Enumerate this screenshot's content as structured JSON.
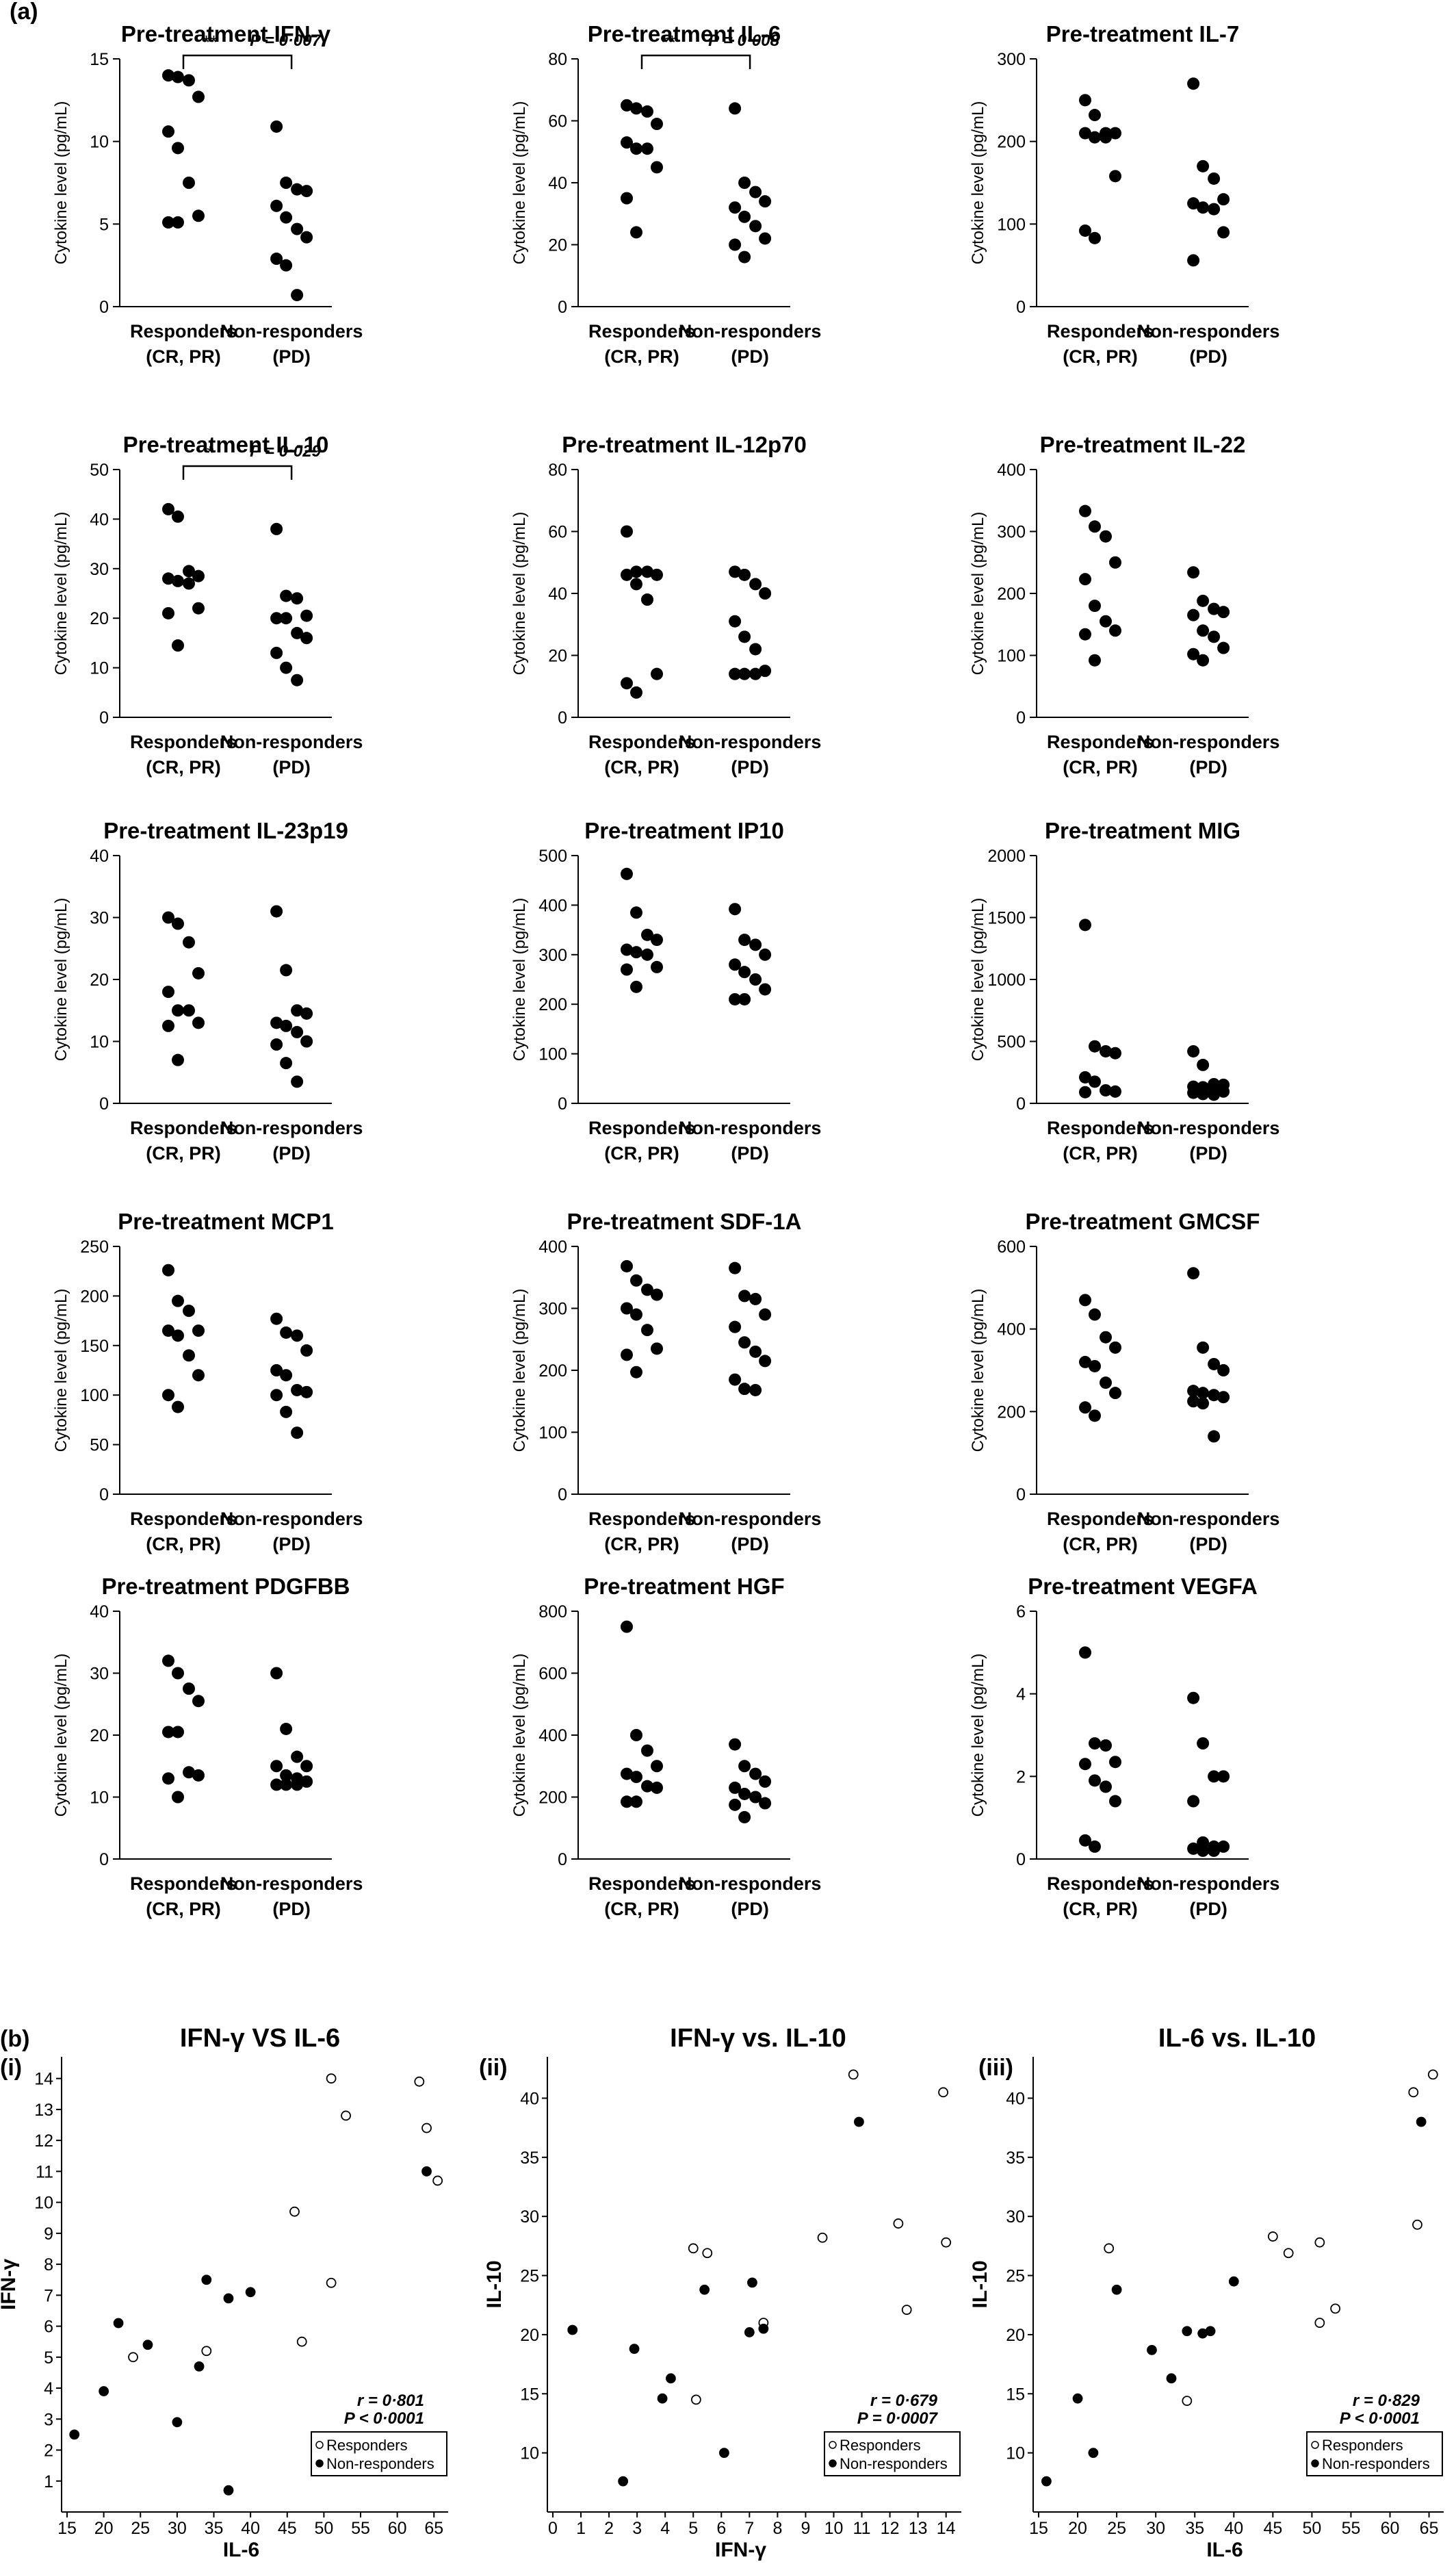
{
  "panel_a_label": "(a)",
  "panel_b_label": "(b)",
  "chart_data": [
    {
      "type": "scatter",
      "title": "Pre-treatment IFN-γ",
      "ylabel": "Cytokine level (pg/mL)",
      "ylim": [
        0,
        15
      ],
      "yticks": [
        0,
        5,
        10,
        15
      ],
      "categories": [
        "Responders\n(CR, PR)",
        "Non-responders\n(PD)"
      ],
      "series": [
        {
          "values": [
            14.0,
            13.9,
            12.7,
            13.7,
            10.6,
            9.6,
            7.5,
            5.5,
            5.1,
            5.1
          ]
        },
        {
          "values": [
            10.9,
            7.5,
            7.1,
            7.0,
            6.1,
            5.4,
            4.7,
            4.2,
            2.9,
            2.5,
            0.7
          ]
        }
      ],
      "annotation": {
        "stars": "**",
        "p": "P = 0·007"
      }
    },
    {
      "type": "scatter",
      "title": "Pre-treatment IL-6",
      "ylabel": "Cytokine level (pg/mL)",
      "ylim": [
        0,
        80
      ],
      "yticks": [
        0,
        20,
        40,
        60,
        80
      ],
      "categories": [
        "Responders\n(CR, PR)",
        "Non-responders\n(PD)"
      ],
      "series": [
        {
          "values": [
            65,
            63,
            64,
            59,
            53,
            51,
            51,
            45,
            35,
            24
          ]
        },
        {
          "values": [
            64,
            40,
            37,
            34,
            32,
            29,
            26,
            22,
            20,
            16
          ]
        }
      ],
      "annotation": {
        "stars": "**",
        "p": "P = 0·008"
      }
    },
    {
      "type": "scatter",
      "title": "Pre-treatment IL-7",
      "ylabel": "Cytokine level (pg/mL)",
      "ylim": [
        0,
        300
      ],
      "yticks": [
        0,
        100,
        200,
        300
      ],
      "categories": [
        "Responders\n(CR, PR)",
        "Non-responders\n(PD)"
      ],
      "series": [
        {
          "values": [
            250,
            232,
            210,
            210,
            205,
            205,
            210,
            158,
            92,
            83
          ]
        },
        {
          "values": [
            270,
            170,
            155,
            130,
            125,
            120,
            118,
            90,
            56
          ]
        }
      ]
    },
    {
      "type": "scatter",
      "title": "Pre-treatment IL-10",
      "ylabel": "Cytokine level (pg/mL)",
      "ylim": [
        0,
        50
      ],
      "yticks": [
        0,
        10,
        20,
        30,
        40,
        50
      ],
      "categories": [
        "Responders\n(CR, PR)",
        "Non-responders\n(PD)"
      ],
      "series": [
        {
          "values": [
            42,
            40.5,
            29.5,
            28,
            27.5,
            27,
            28.5,
            22,
            21,
            14.5
          ]
        },
        {
          "values": [
            38,
            24.5,
            24,
            20.5,
            20,
            20,
            17,
            16,
            13,
            10,
            7.5
          ]
        }
      ],
      "annotation": {
        "stars": "*",
        "p": "P = 0·029"
      }
    },
    {
      "type": "scatter",
      "title": "Pre-treatment IL-12p70",
      "ylabel": "Cytokine level (pg/mL)",
      "ylim": [
        0,
        80
      ],
      "yticks": [
        0,
        20,
        40,
        60,
        80
      ],
      "categories": [
        "Responders\n(CR, PR)",
        "Non-responders\n(PD)"
      ],
      "series": [
        {
          "values": [
            60,
            47,
            47,
            46,
            46,
            43,
            38,
            14,
            11,
            8
          ]
        },
        {
          "values": [
            47,
            46,
            43,
            40,
            31,
            26,
            22,
            15,
            14,
            14,
            14
          ]
        }
      ]
    },
    {
      "type": "scatter",
      "title": "Pre-treatment IL-22",
      "ylabel": "Cytokine level (pg/mL)",
      "ylim": [
        0,
        400
      ],
      "yticks": [
        0,
        100,
        200,
        300,
        400
      ],
      "categories": [
        "Responders\n(CR, PR)",
        "Non-responders\n(PD)"
      ],
      "series": [
        {
          "values": [
            333,
            308,
            292,
            250,
            223,
            180,
            155,
            140,
            134,
            92
          ]
        },
        {
          "values": [
            234,
            188,
            175,
            170,
            165,
            140,
            130,
            112,
            102,
            92
          ]
        }
      ]
    },
    {
      "type": "scatter",
      "title": "Pre-treatment IL-23p19",
      "ylabel": "Cytokine level (pg/mL)",
      "ylim": [
        0,
        40
      ],
      "yticks": [
        0,
        10,
        20,
        30,
        40
      ],
      "categories": [
        "Responders\n(CR, PR)",
        "Non-responders\n(PD)"
      ],
      "series": [
        {
          "values": [
            30,
            29,
            26,
            21,
            18,
            15,
            15,
            13,
            12.5,
            7
          ]
        },
        {
          "values": [
            31,
            21.5,
            15,
            14.5,
            13,
            12.5,
            11.5,
            10,
            9.5,
            6.5,
            3.5
          ]
        }
      ]
    },
    {
      "type": "scatter",
      "title": "Pre-treatment IP10",
      "ylabel": "Cytokine level (pg/mL)",
      "ylim": [
        0,
        500
      ],
      "yticks": [
        0,
        100,
        200,
        300,
        400,
        500
      ],
      "categories": [
        "Responders\n(CR, PR)",
        "Non-responders\n(PD)"
      ],
      "series": [
        {
          "values": [
            463,
            385,
            340,
            330,
            310,
            305,
            300,
            275,
            270,
            235
          ]
        },
        {
          "values": [
            392,
            330,
            320,
            300,
            280,
            265,
            250,
            230,
            210,
            210
          ]
        }
      ]
    },
    {
      "type": "scatter",
      "title": "Pre-treatment MIG",
      "ylabel": "Cytokine level (pg/mL)",
      "ylim": [
        0,
        2000
      ],
      "yticks": [
        0,
        500,
        1000,
        1500,
        2000
      ],
      "categories": [
        "Responders\n(CR, PR)",
        "Non-responders\n(PD)"
      ],
      "series": [
        {
          "values": [
            1440,
            460,
            420,
            405,
            210,
            175,
            105,
            95,
            90
          ]
        },
        {
          "values": [
            420,
            310,
            155,
            150,
            135,
            130,
            120,
            95,
            85,
            75,
            70
          ]
        }
      ]
    },
    {
      "type": "scatter",
      "title": "Pre-treatment MCP1",
      "ylabel": "Cytokine level (pg/mL)",
      "ylim": [
        0,
        250
      ],
      "yticks": [
        0,
        50,
        100,
        150,
        200,
        250
      ],
      "categories": [
        "Responders\n(CR, PR)",
        "Non-responders\n(PD)"
      ],
      "series": [
        {
          "values": [
            226,
            195,
            185,
            165,
            165,
            160,
            140,
            120,
            100,
            88
          ]
        },
        {
          "values": [
            177,
            163,
            160,
            145,
            125,
            120,
            105,
            103,
            100,
            83,
            62
          ]
        }
      ]
    },
    {
      "type": "scatter",
      "title": "Pre-treatment SDF-1A",
      "ylabel": "Cytokine level (pg/mL)",
      "ylim": [
        0,
        400
      ],
      "yticks": [
        0,
        100,
        200,
        300,
        400
      ],
      "categories": [
        "Responders\n(CR, PR)",
        "Non-responders\n(PD)"
      ],
      "series": [
        {
          "values": [
            368,
            345,
            330,
            322,
            300,
            290,
            265,
            235,
            225,
            197
          ]
        },
        {
          "values": [
            365,
            320,
            315,
            290,
            270,
            245,
            230,
            215,
            185,
            170,
            168
          ]
        }
      ]
    },
    {
      "type": "scatter",
      "title": "Pre-treatment GMCSF",
      "ylabel": "Cytokine level (pg/mL)",
      "ylim": [
        0,
        600
      ],
      "yticks": [
        0,
        200,
        400,
        600
      ],
      "categories": [
        "Responders\n(CR, PR)",
        "Non-responders\n(PD)"
      ],
      "series": [
        {
          "values": [
            470,
            435,
            380,
            355,
            320,
            310,
            270,
            245,
            210,
            190
          ]
        },
        {
          "values": [
            535,
            355,
            315,
            300,
            250,
            245,
            240,
            235,
            225,
            220,
            140
          ]
        }
      ]
    },
    {
      "type": "scatter",
      "title": "Pre-treatment PDGFBB",
      "ylabel": "Cytokine level (pg/mL)",
      "ylim": [
        0,
        40
      ],
      "yticks": [
        0,
        10,
        20,
        30,
        40
      ],
      "categories": [
        "Responders\n(CR, PR)",
        "Non-responders\n(PD)"
      ],
      "series": [
        {
          "values": [
            32,
            30,
            27.5,
            25.5,
            20.5,
            20.5,
            14,
            13.5,
            13,
            10
          ]
        },
        {
          "values": [
            30,
            21,
            16.5,
            15,
            15,
            13.5,
            13,
            12.5,
            12,
            12,
            12
          ]
        }
      ]
    },
    {
      "type": "scatter",
      "title": "Pre-treatment HGF",
      "ylabel": "Cytokine level (pg/mL)",
      "ylim": [
        0,
        800
      ],
      "yticks": [
        0,
        200,
        400,
        600,
        800
      ],
      "categories": [
        "Responders\n(CR, PR)",
        "Non-responders\n(PD)"
      ],
      "series": [
        {
          "values": [
            750,
            400,
            350,
            300,
            275,
            265,
            235,
            230,
            185,
            185
          ]
        },
        {
          "values": [
            370,
            300,
            275,
            250,
            230,
            210,
            200,
            180,
            175,
            135
          ]
        }
      ]
    },
    {
      "type": "scatter",
      "title": "Pre-treatment VEGFA",
      "ylabel": "Cytokine level (pg/mL)",
      "ylim": [
        0,
        6
      ],
      "yticks": [
        0,
        2,
        4,
        6
      ],
      "categories": [
        "Responders\n(CR, PR)",
        "Non-responders\n(PD)"
      ],
      "series": [
        {
          "values": [
            5.0,
            2.8,
            2.75,
            2.35,
            2.3,
            1.9,
            1.75,
            1.4,
            0.45,
            0.3
          ]
        },
        {
          "values": [
            3.9,
            2.8,
            2.0,
            2.0,
            1.4,
            0.4,
            0.3,
            0.3,
            0.25,
            0.2,
            0.2
          ]
        }
      ]
    },
    {
      "type": "scatter",
      "label": "(i)",
      "title": "IFN-γ VS IL-6",
      "xlabel": "IL-6",
      "ylabel": "IFN-γ",
      "xlim": [
        15,
        66
      ],
      "ylim": [
        0,
        14.7
      ],
      "xticks": [
        15,
        20,
        25,
        30,
        35,
        40,
        45,
        50,
        55,
        60,
        65
      ],
      "yticks": [
        1,
        2,
        3,
        4,
        5,
        6,
        7,
        8,
        9,
        10,
        11,
        12,
        13,
        14
      ],
      "series": [
        {
          "name": "Responders",
          "marker": "open",
          "points": [
            [
              51,
              14.0
            ],
            [
              63,
              13.9
            ],
            [
              53,
              12.8
            ],
            [
              64,
              12.4
            ],
            [
              65.5,
              10.7
            ],
            [
              46,
              9.7
            ],
            [
              51,
              7.4
            ],
            [
              47,
              5.5
            ],
            [
              34,
              5.2
            ],
            [
              24,
              5.0
            ]
          ]
        },
        {
          "name": "Non-responders",
          "marker": "filled",
          "points": [
            [
              64,
              11.0
            ],
            [
              34,
              7.5
            ],
            [
              40,
              7.1
            ],
            [
              37,
              6.9
            ],
            [
              22,
              6.1
            ],
            [
              26,
              5.4
            ],
            [
              33,
              4.7
            ],
            [
              20,
              3.9
            ],
            [
              30,
              2.9
            ],
            [
              16,
              2.5
            ],
            [
              37,
              0.7
            ]
          ]
        }
      ],
      "stats": {
        "r": "r = 0·801",
        "p": "P < 0·0001"
      }
    },
    {
      "type": "scatter",
      "label": "(ii)",
      "title": "IFN-γ vs. IL-10",
      "xlabel": "IFN-γ",
      "ylabel": "IL-10",
      "xlim": [
        0,
        14.3
      ],
      "ylim": [
        5,
        43.5
      ],
      "xticks": [
        0,
        1,
        2,
        3,
        4,
        5,
        6,
        7,
        8,
        9,
        10,
        11,
        12,
        13,
        14
      ],
      "yticks": [
        10,
        15,
        20,
        25,
        30,
        35,
        40
      ],
      "series": [
        {
          "name": "Responders",
          "marker": "open",
          "points": [
            [
              10.7,
              42.0
            ],
            [
              13.9,
              40.5
            ],
            [
              12.3,
              29.4
            ],
            [
              9.6,
              28.2
            ],
            [
              14.0,
              27.8
            ],
            [
              5.0,
              27.3
            ],
            [
              5.5,
              26.9
            ],
            [
              7.5,
              21.0
            ],
            [
              12.6,
              22.1
            ],
            [
              5.1,
              14.5
            ]
          ]
        },
        {
          "name": "Non-responders",
          "marker": "filled",
          "points": [
            [
              10.9,
              38.0
            ],
            [
              7.1,
              24.4
            ],
            [
              5.4,
              23.8
            ],
            [
              0.7,
              20.4
            ],
            [
              7.0,
              20.2
            ],
            [
              7.5,
              20.5
            ],
            [
              2.9,
              18.8
            ],
            [
              4.2,
              16.3
            ],
            [
              3.9,
              14.6
            ],
            [
              6.1,
              10.0
            ],
            [
              2.5,
              7.6
            ]
          ]
        }
      ],
      "stats": {
        "r": "r = 0·679",
        "p": "P = 0·0007"
      }
    },
    {
      "type": "scatter",
      "label": "(iii)",
      "title": "IL-6 vs. IL-10",
      "xlabel": "IL-6",
      "ylabel": "IL-10",
      "xlim": [
        15,
        66
      ],
      "ylim": [
        5,
        43.5
      ],
      "xticks": [
        15,
        20,
        25,
        30,
        35,
        40,
        45,
        50,
        55,
        60,
        65
      ],
      "yticks": [
        10,
        15,
        20,
        25,
        30,
        35,
        40
      ],
      "series": [
        {
          "name": "Responders",
          "marker": "open",
          "points": [
            [
              65.5,
              42.0
            ],
            [
              63,
              40.5
            ],
            [
              63.5,
              29.3
            ],
            [
              45,
              28.3
            ],
            [
              51,
              27.8
            ],
            [
              24,
              27.3
            ],
            [
              47,
              26.9
            ],
            [
              53,
              22.2
            ],
            [
              51,
              21.0
            ],
            [
              34,
              14.4
            ]
          ]
        },
        {
          "name": "Non-responders",
          "marker": "filled",
          "points": [
            [
              64,
              38.0
            ],
            [
              40,
              24.5
            ],
            [
              25,
              23.8
            ],
            [
              34,
              20.3
            ],
            [
              37,
              20.3
            ],
            [
              36,
              20.1
            ],
            [
              29.5,
              18.7
            ],
            [
              32,
              16.3
            ],
            [
              20,
              14.6
            ],
            [
              22,
              10.0
            ],
            [
              16,
              7.6
            ]
          ]
        }
      ],
      "stats": {
        "r": "r = 0·829",
        "p": "P < 0·0001"
      }
    }
  ]
}
